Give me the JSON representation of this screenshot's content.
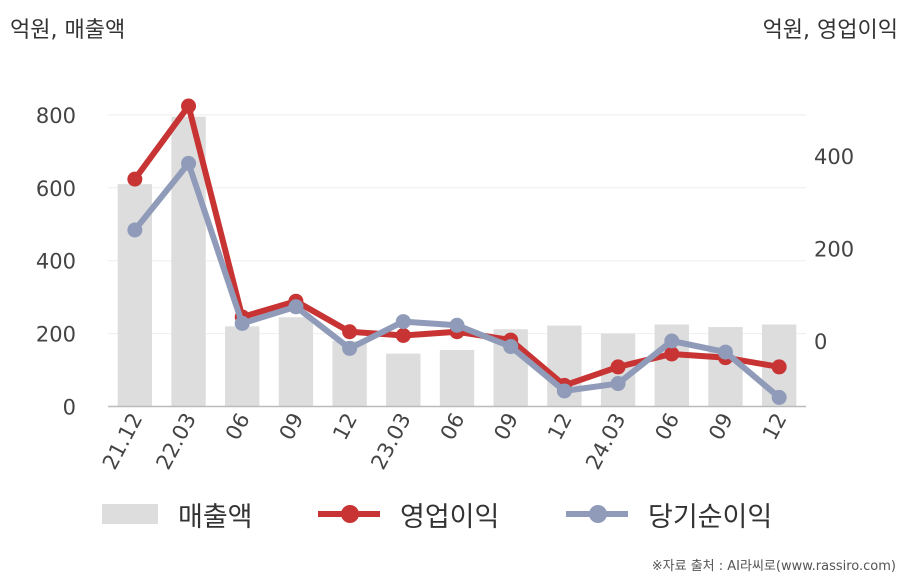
{
  "unit_left": "억원, 매출액",
  "unit_right": "억원, 영업이익",
  "source": "※자료 출처 : AI라씨로(www.rassiro.com)",
  "legend": {
    "bar": "매출액",
    "line1": "영업이익",
    "line2": "당기순이익"
  },
  "colors": {
    "bar": "#dddddd",
    "operating_profit": "#c83434",
    "net_income": "#8f9bb8",
    "grid": "#eeeeee",
    "axis": "#bbbbbb"
  },
  "chart_data": {
    "type": "bar+line",
    "categories": [
      "21.12",
      "22.03",
      "06",
      "09",
      "12",
      "23.03",
      "06",
      "09",
      "12",
      "24.03",
      "06",
      "09",
      "12"
    ],
    "left_axis": {
      "ticks": [
        0,
        200,
        400,
        600,
        800
      ],
      "ylim": [
        0,
        900
      ]
    },
    "right_axis": {
      "ticks": [
        0,
        200,
        400
      ],
      "ylim": [
        -140,
        540
      ]
    },
    "series": [
      {
        "name": "매출액",
        "type": "bar",
        "axis": "left",
        "values": [
          610,
          795,
          220,
          245,
          180,
          145,
          155,
          212,
          222,
          200,
          225,
          218,
          225
        ]
      },
      {
        "name": "영업이익",
        "type": "line",
        "axis": "right",
        "values": [
          350,
          508,
          52,
          86,
          20,
          12,
          20,
          2,
          -96,
          -56,
          -28,
          -36,
          -56
        ]
      },
      {
        "name": "당기순이익",
        "type": "line",
        "axis": "right",
        "values": [
          240,
          384,
          38,
          74,
          -16,
          42,
          34,
          -12,
          -108,
          -92,
          0,
          -24,
          -122
        ]
      }
    ],
    "grid": true
  }
}
